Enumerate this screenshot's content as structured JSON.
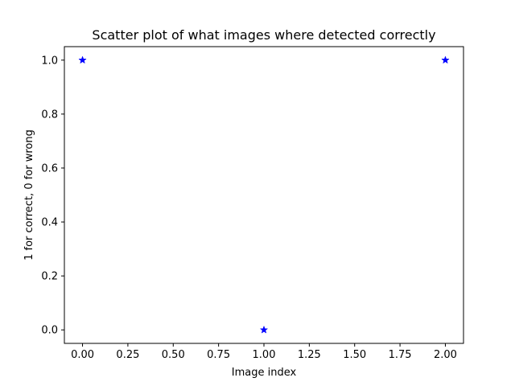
{
  "chart_data": {
    "type": "scatter",
    "title": "Scatter plot of what images where detected correctly",
    "xlabel": "Image index",
    "ylabel": "1 for correct, 0 for wrong",
    "x": [
      0,
      1,
      2
    ],
    "y": [
      1,
      0,
      1
    ],
    "xlim": [
      -0.1,
      2.1
    ],
    "ylim": [
      -0.05,
      1.05
    ],
    "xticks": [
      0.0,
      0.25,
      0.5,
      0.75,
      1.0,
      1.25,
      1.5,
      1.75,
      2.0
    ],
    "xtick_labels": [
      "0.00",
      "0.25",
      "0.50",
      "0.75",
      "1.00",
      "1.25",
      "1.50",
      "1.75",
      "2.00"
    ],
    "yticks": [
      0.0,
      0.2,
      0.4,
      0.6,
      0.8,
      1.0
    ],
    "ytick_labels": [
      "0.0",
      "0.2",
      "0.4",
      "0.6",
      "0.8",
      "1.0"
    ],
    "marker": "star",
    "marker_color": "#0000ff",
    "grid": false,
    "legend": false
  }
}
